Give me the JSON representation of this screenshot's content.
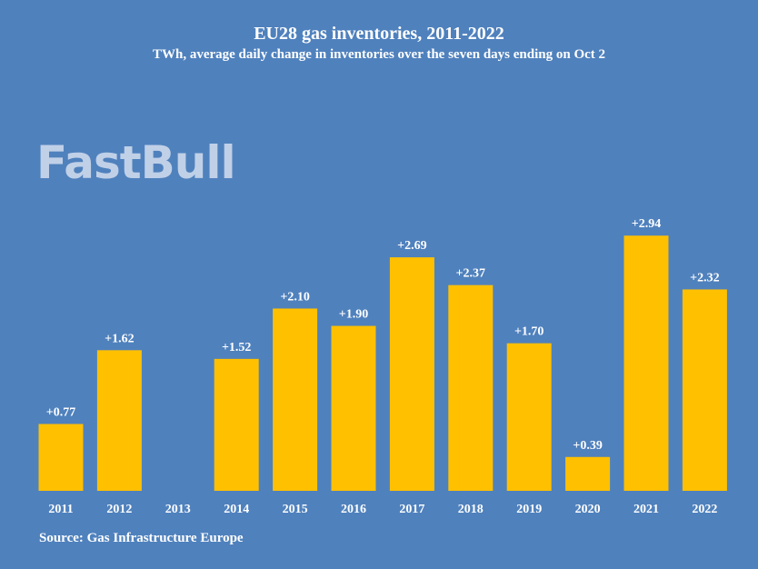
{
  "chart_data": {
    "type": "bar",
    "title": "EU28 gas inventories, 2011-2022",
    "subtitle": "TWh, average daily change in inventories over the seven days ending on Oct 2",
    "categories": [
      "2011",
      "2012",
      "2013",
      "2014",
      "2015",
      "2016",
      "2017",
      "2018",
      "2019",
      "2020",
      "2021",
      "2022"
    ],
    "values": [
      0.77,
      1.62,
      null,
      1.52,
      2.1,
      1.9,
      2.69,
      2.37,
      1.7,
      0.39,
      2.94,
      2.32
    ],
    "data_labels": [
      "+0.77",
      "+1.62",
      "",
      "+1.52",
      "+2.10",
      "+1.90",
      "+2.69",
      "+2.37",
      "+1.70",
      "+0.39",
      "+2.94",
      "+2.32"
    ],
    "xlabel": "",
    "ylabel": "",
    "ylim": [
      0,
      3.2
    ],
    "grid": false,
    "colors": {
      "bar": "#ffc000",
      "background": "#4f81bd"
    }
  },
  "source": "Source: Gas Infrastructure Europe",
  "watermark": "FastBull"
}
